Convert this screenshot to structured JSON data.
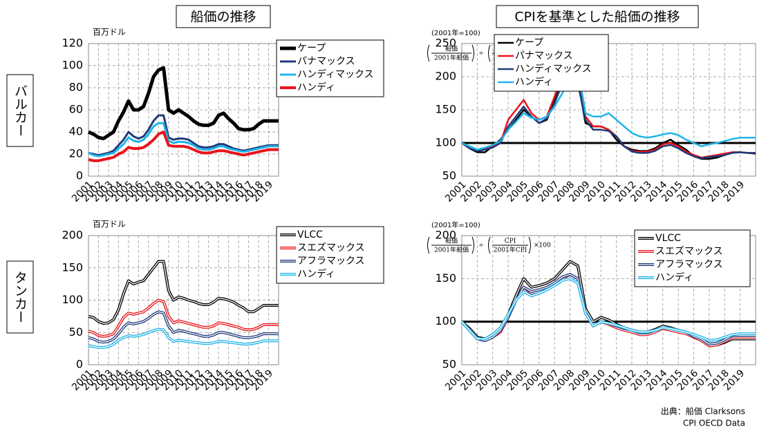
{
  "column_titles": [
    "船価の推移",
    "CPIを基準とした船価の推移"
  ],
  "row_labels": [
    "バルカー",
    "タンカー"
  ],
  "source": [
    "出典：船価 Clarksons",
    "CPI OECD Data"
  ],
  "chart_data": [
    {
      "type": "line",
      "unit_label": "百万ドル",
      "line_style": "solid",
      "grid": true,
      "legend": "upper right",
      "x": [
        2001,
        2001.5,
        2002,
        2002.5,
        2003,
        2003.5,
        2004,
        2004.5,
        2005,
        2005.5,
        2006,
        2006.5,
        2007,
        2007.5,
        2008,
        2008.5,
        2009,
        2009.5,
        2010,
        2010.5,
        2011,
        2011.5,
        2012,
        2012.5,
        2013,
        2013.5,
        2014,
        2014.5,
        2015,
        2015.5,
        2016,
        2016.5,
        2017,
        2017.5,
        2018,
        2018.5,
        2019,
        2019.5,
        2020
      ],
      "xlim": [
        2001,
        2020
      ],
      "xticks": [
        2001,
        2002,
        2003,
        2004,
        2005,
        2006,
        2007,
        2008,
        2009,
        2010,
        2011,
        2012,
        2013,
        2014,
        2015,
        2016,
        2017,
        2018,
        2019
      ],
      "ylim": [
        0,
        120
      ],
      "yticks": [
        0,
        20,
        40,
        60,
        80,
        100,
        120
      ],
      "series": [
        {
          "name": "ケープ",
          "color": "#000000",
          "line_width": 5,
          "values": [
            40,
            38,
            35,
            34,
            37,
            40,
            50,
            58,
            68,
            60,
            60,
            63,
            75,
            90,
            96,
            98,
            60,
            57,
            60,
            57,
            54,
            50,
            47,
            46,
            46,
            48,
            55,
            57,
            52,
            48,
            43,
            42,
            42,
            43,
            47,
            50,
            50,
            50,
            50
          ]
        },
        {
          "name": "パナマックス",
          "color": "#1f3a7a",
          "line_width": 3,
          "values": [
            21,
            20,
            19,
            20,
            21,
            23,
            28,
            33,
            40,
            36,
            34,
            36,
            42,
            50,
            55,
            55,
            35,
            33,
            34,
            34,
            33,
            30,
            27,
            26,
            26,
            27,
            29,
            29,
            27,
            25,
            24,
            23,
            24,
            25,
            26,
            27,
            28,
            28,
            28
          ]
        },
        {
          "name": "ハンディマックス",
          "color": "#1fb4e8",
          "line_width": 3,
          "values": [
            21,
            19,
            18,
            19,
            20,
            21,
            25,
            29,
            35,
            32,
            31,
            33,
            38,
            45,
            48,
            48,
            32,
            30,
            31,
            31,
            30,
            28,
            25,
            24,
            24,
            25,
            27,
            27,
            25,
            24,
            23,
            22,
            23,
            24,
            25,
            26,
            27,
            27,
            27
          ]
        },
        {
          "name": "ハンディ",
          "color": "#e8141a",
          "line_width": 4,
          "values": [
            15,
            14,
            14,
            15,
            16,
            17,
            20,
            22,
            26,
            25,
            25,
            26,
            29,
            33,
            38,
            40,
            28,
            27,
            27,
            27,
            26,
            24,
            22,
            21,
            21,
            22,
            23,
            23,
            22,
            21,
            20,
            19,
            20,
            21,
            22,
            23,
            24,
            24,
            24
          ]
        }
      ]
    },
    {
      "type": "line",
      "note": "(2001年=100)",
      "formula": {
        "num1": "船価",
        "den1": "2001年船価",
        "op": "÷",
        "num2": "CPI",
        "den2": "2001年CPI",
        "tail": "×100"
      },
      "reference_line": 100,
      "line_style": "solid",
      "grid": true,
      "legend": "upper right",
      "x": [
        2001,
        2001.5,
        2002,
        2002.5,
        2003,
        2003.5,
        2004,
        2004.5,
        2005,
        2005.5,
        2006,
        2006.5,
        2007,
        2007.5,
        2008,
        2008.5,
        2009,
        2009.5,
        2010,
        2010.5,
        2011,
        2011.5,
        2012,
        2012.5,
        2013,
        2013.5,
        2014,
        2014.5,
        2015,
        2015.5,
        2016,
        2016.5,
        2017,
        2017.5,
        2018,
        2018.5,
        2019,
        2019.5,
        2020
      ],
      "xlim": [
        2001,
        2020
      ],
      "xticks": [
        2001,
        2002,
        2003,
        2004,
        2005,
        2006,
        2007,
        2008,
        2009,
        2010,
        2011,
        2012,
        2013,
        2014,
        2015,
        2016,
        2017,
        2018,
        2019
      ],
      "ylim": [
        50,
        250
      ],
      "yticks": [
        50,
        100,
        150,
        200,
        250
      ],
      "series": [
        {
          "name": "ケープ",
          "color": "#000000",
          "line_width": 2.5,
          "values": [
            100,
            92,
            86,
            86,
            95,
            105,
            120,
            135,
            150,
            140,
            130,
            135,
            165,
            190,
            195,
            195,
            130,
            125,
            125,
            120,
            105,
            95,
            90,
            88,
            88,
            92,
            100,
            105,
            97,
            90,
            80,
            76,
            76,
            78,
            82,
            86,
            86,
            85,
            84
          ]
        },
        {
          "name": "パナマックス",
          "color": "#e8141a",
          "line_width": 2.5,
          "values": [
            100,
            95,
            90,
            92,
            95,
            100,
            135,
            150,
            165,
            145,
            135,
            140,
            170,
            200,
            205,
            200,
            140,
            125,
            125,
            120,
            110,
            95,
            88,
            87,
            87,
            90,
            98,
            100,
            95,
            87,
            82,
            78,
            80,
            82,
            84,
            86,
            86,
            85,
            85
          ]
        },
        {
          "name": "ハンディマックス",
          "color": "#1f3a7a",
          "line_width": 2.5,
          "values": [
            100,
            92,
            88,
            90,
            93,
            100,
            125,
            140,
            155,
            140,
            130,
            137,
            160,
            190,
            195,
            190,
            135,
            120,
            120,
            118,
            110,
            95,
            87,
            85,
            85,
            88,
            95,
            97,
            92,
            85,
            80,
            77,
            79,
            80,
            82,
            85,
            86,
            85,
            85
          ]
        },
        {
          "name": "ハンディ",
          "color": "#1fb4e8",
          "line_width": 2.5,
          "values": [
            100,
            95,
            90,
            93,
            97,
            103,
            120,
            132,
            145,
            138,
            135,
            140,
            155,
            175,
            200,
            215,
            145,
            140,
            140,
            145,
            135,
            125,
            115,
            110,
            108,
            110,
            113,
            115,
            112,
            105,
            100,
            95,
            98,
            100,
            103,
            106,
            108,
            108,
            108
          ]
        }
      ]
    },
    {
      "type": "line",
      "unit_label": "百万ドル",
      "line_style": "double",
      "grid": true,
      "legend": "upper right",
      "x": [
        2001,
        2001.5,
        2002,
        2002.5,
        2003,
        2003.5,
        2004,
        2004.5,
        2005,
        2005.5,
        2006,
        2006.5,
        2007,
        2007.5,
        2008,
        2008.5,
        2009,
        2009.5,
        2010,
        2010.5,
        2011,
        2011.5,
        2012,
        2012.5,
        2013,
        2013.5,
        2014,
        2014.5,
        2015,
        2015.5,
        2016,
        2016.5,
        2017,
        2017.5,
        2018,
        2018.5,
        2019,
        2019.5,
        2020
      ],
      "xlim": [
        2001,
        2020
      ],
      "xticks": [
        2001,
        2002,
        2003,
        2004,
        2005,
        2006,
        2007,
        2008,
        2009,
        2010,
        2011,
        2012,
        2013,
        2014,
        2015,
        2016,
        2017,
        2018,
        2019
      ],
      "ylim": [
        0,
        200
      ],
      "yticks": [
        0,
        50,
        100,
        150,
        200
      ],
      "series": [
        {
          "name": "VLCC",
          "color": "#000000",
          "line_width": 4,
          "values": [
            75,
            73,
            67,
            64,
            65,
            70,
            85,
            110,
            130,
            125,
            128,
            130,
            140,
            150,
            160,
            160,
            115,
            100,
            105,
            103,
            100,
            98,
            95,
            93,
            93,
            97,
            103,
            102,
            100,
            97,
            92,
            88,
            82,
            82,
            87,
            92,
            92,
            92,
            92
          ]
        },
        {
          "name": "スエズマックス",
          "color": "#e8141a",
          "line_width": 4,
          "values": [
            52,
            50,
            45,
            44,
            45,
            48,
            60,
            73,
            80,
            78,
            80,
            82,
            88,
            95,
            100,
            98,
            75,
            65,
            68,
            66,
            64,
            62,
            60,
            58,
            58,
            60,
            65,
            64,
            62,
            60,
            58,
            55,
            54,
            55,
            58,
            62,
            62,
            62,
            62
          ]
        },
        {
          "name": "アフラマックス",
          "color": "#1f3a7a",
          "line_width": 4,
          "values": [
            42,
            40,
            36,
            35,
            36,
            40,
            48,
            58,
            65,
            63,
            65,
            67,
            72,
            78,
            82,
            80,
            60,
            50,
            53,
            52,
            50,
            48,
            46,
            44,
            44,
            46,
            50,
            50,
            48,
            46,
            44,
            42,
            42,
            43,
            45,
            48,
            48,
            48,
            48
          ]
        },
        {
          "name": "ハンディ",
          "color": "#1fb4e8",
          "line_width": 4,
          "values": [
            30,
            28,
            27,
            27,
            28,
            32,
            38,
            42,
            45,
            44,
            45,
            47,
            50,
            53,
            55,
            54,
            42,
            36,
            38,
            37,
            36,
            35,
            34,
            33,
            33,
            34,
            36,
            36,
            35,
            34,
            33,
            32,
            32,
            33,
            35,
            37,
            37,
            37,
            37
          ]
        }
      ]
    },
    {
      "type": "line",
      "note": "(2001年=100)",
      "formula": {
        "num1": "船価",
        "den1": "2001年船価",
        "op": "÷",
        "num2": "CPI",
        "den2": "2001年CPI",
        "tail": "×100"
      },
      "reference_line": 100,
      "line_style": "double",
      "grid": true,
      "legend": "upper right",
      "x": [
        2001,
        2001.5,
        2002,
        2002.5,
        2003,
        2003.5,
        2004,
        2004.5,
        2005,
        2005.5,
        2006,
        2006.5,
        2007,
        2007.5,
        2008,
        2008.5,
        2009,
        2009.5,
        2010,
        2010.5,
        2011,
        2011.5,
        2012,
        2012.5,
        2013,
        2013.5,
        2014,
        2014.5,
        2015,
        2015.5,
        2016,
        2016.5,
        2017,
        2017.5,
        2018,
        2018.5,
        2019,
        2019.5,
        2020
      ],
      "xlim": [
        2001,
        2020
      ],
      "xticks": [
        2001,
        2002,
        2003,
        2004,
        2005,
        2006,
        2007,
        2008,
        2009,
        2010,
        2011,
        2012,
        2013,
        2014,
        2015,
        2016,
        2017,
        2018,
        2019
      ],
      "ylim": [
        50,
        200
      ],
      "yticks": [
        50,
        100,
        150,
        200
      ],
      "series": [
        {
          "name": "VLCC",
          "color": "#000000",
          "line_width": 4,
          "values": [
            100,
            92,
            82,
            80,
            85,
            93,
            108,
            130,
            150,
            140,
            142,
            145,
            150,
            160,
            170,
            165,
            115,
            100,
            105,
            102,
            97,
            93,
            90,
            88,
            88,
            91,
            95,
            93,
            90,
            88,
            83,
            78,
            73,
            73,
            76,
            80,
            80,
            80,
            80
          ]
        },
        {
          "name": "スエズマックス",
          "color": "#e8141a",
          "line_width": 4,
          "values": [
            100,
            90,
            80,
            78,
            82,
            88,
            105,
            125,
            140,
            133,
            135,
            138,
            143,
            150,
            155,
            150,
            110,
            95,
            100,
            97,
            93,
            90,
            88,
            85,
            85,
            88,
            92,
            90,
            88,
            86,
            82,
            78,
            72,
            73,
            77,
            82,
            82,
            82,
            82
          ]
        },
        {
          "name": "アフラマックス",
          "color": "#1f3a7a",
          "line_width": 4,
          "values": [
            100,
            90,
            80,
            78,
            82,
            90,
            105,
            125,
            140,
            135,
            137,
            140,
            145,
            152,
            155,
            150,
            110,
            95,
            100,
            98,
            95,
            92,
            90,
            87,
            87,
            90,
            93,
            92,
            90,
            88,
            83,
            80,
            74,
            75,
            79,
            84,
            84,
            84,
            84
          ]
        },
        {
          "name": "ハンディ",
          "color": "#1fb4e8",
          "line_width": 4,
          "values": [
            100,
            90,
            80,
            80,
            85,
            93,
            108,
            125,
            135,
            130,
            133,
            137,
            142,
            148,
            150,
            145,
            110,
            95,
            100,
            98,
            96,
            93,
            90,
            88,
            88,
            90,
            93,
            92,
            90,
            88,
            85,
            82,
            78,
            79,
            82,
            85,
            86,
            86,
            86
          ]
        }
      ]
    }
  ]
}
